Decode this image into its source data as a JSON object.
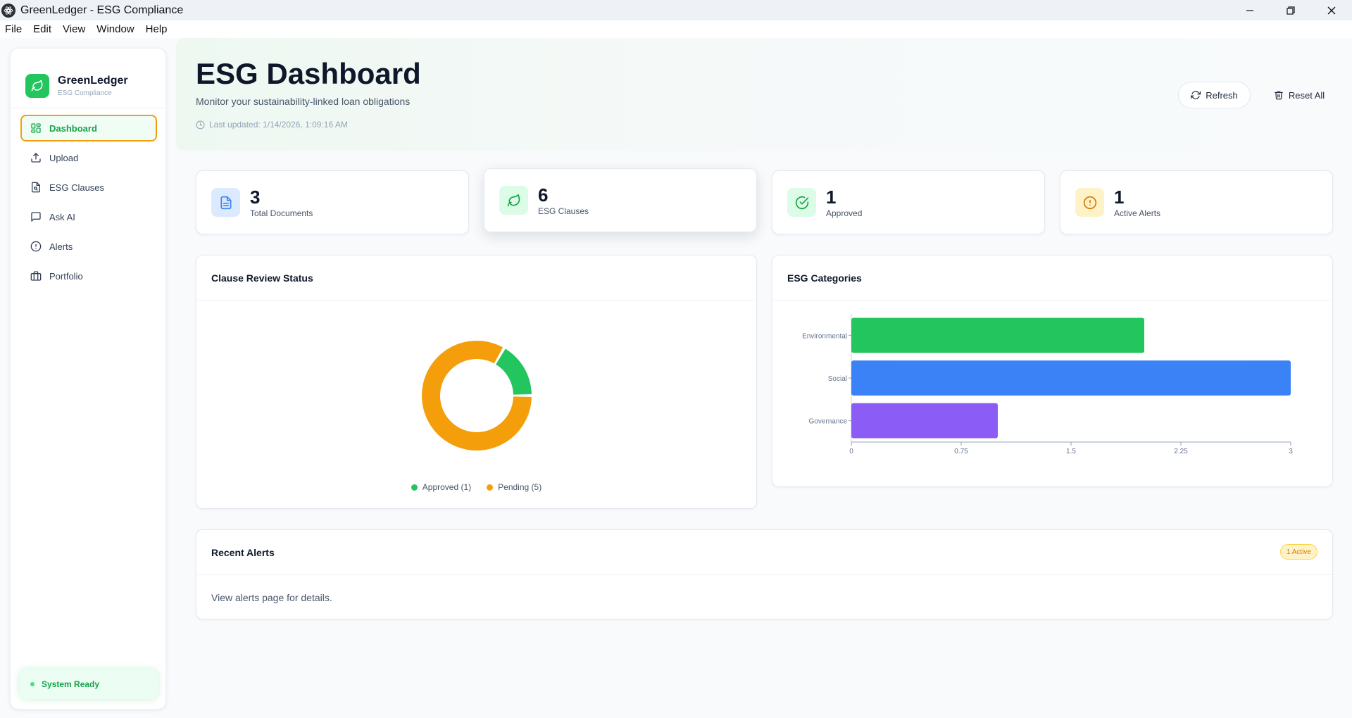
{
  "window": {
    "title": "GreenLedger - ESG Compliance",
    "controls": [
      "minimize-icon",
      "restore-icon",
      "close-icon"
    ]
  },
  "menu": [
    "File",
    "Edit",
    "View",
    "Window",
    "Help"
  ],
  "sidebar": {
    "brand_name": "GreenLedger",
    "brand_sub": "ESG Compliance",
    "items": [
      {
        "label": "Dashboard",
        "icon": "grid-icon",
        "active": true
      },
      {
        "label": "Upload",
        "icon": "upload-icon"
      },
      {
        "label": "ESG Clauses",
        "icon": "file-search-icon"
      },
      {
        "label": "Ask AI",
        "icon": "chat-icon"
      },
      {
        "label": "Alerts",
        "icon": "alert-circle-icon"
      },
      {
        "label": "Portfolio",
        "icon": "briefcase-icon"
      }
    ],
    "status": "System Ready"
  },
  "header": {
    "title": "ESG Dashboard",
    "subtitle": "Monitor your sustainability-linked loan obligations",
    "last_updated": "Last updated: 1/14/2026, 1:09:16 AM",
    "refresh_label": "Refresh",
    "reset_label": "Reset All"
  },
  "stats": [
    {
      "value": "3",
      "label": "Total Documents",
      "icon": "document-icon",
      "color": "#3b82f6",
      "bg": "#dbeafe"
    },
    {
      "value": "6",
      "label": "ESG Clauses",
      "icon": "leaf-icon",
      "color": "#16a34a",
      "bg": "#dcfce7"
    },
    {
      "value": "1",
      "label": "Approved",
      "icon": "check-circle-icon",
      "color": "#16a34a",
      "bg": "#dcfce7"
    },
    {
      "value": "1",
      "label": "Active Alerts",
      "icon": "alert-circle-icon",
      "color": "#d97706",
      "bg": "#fef3c7"
    }
  ],
  "review_panel": {
    "title": "Clause Review Status"
  },
  "categories_panel": {
    "title": "ESG Categories"
  },
  "alerts_panel": {
    "title": "Recent Alerts",
    "badge": "1 Active",
    "body": "View alerts page for details."
  },
  "chart_data": [
    {
      "type": "pie",
      "donut": true,
      "categories": [
        "Approved",
        "Pending"
      ],
      "values": [
        1,
        5
      ],
      "legend_labels": [
        "Approved (1)",
        "Pending (5)"
      ],
      "colors": [
        "#22c55e",
        "#f59e0b"
      ],
      "legend": "bottom"
    },
    {
      "type": "bar",
      "orientation": "horizontal",
      "categories": [
        "Environmental",
        "Social",
        "Governance"
      ],
      "values": [
        2,
        3,
        1
      ],
      "colors": [
        "#22c55e",
        "#3b82f6",
        "#8b5cf6"
      ],
      "xlim": [
        0,
        3
      ],
      "xticks": [
        "0",
        "0.75",
        "1.5",
        "2.25",
        "3"
      ],
      "grid": false
    }
  ]
}
